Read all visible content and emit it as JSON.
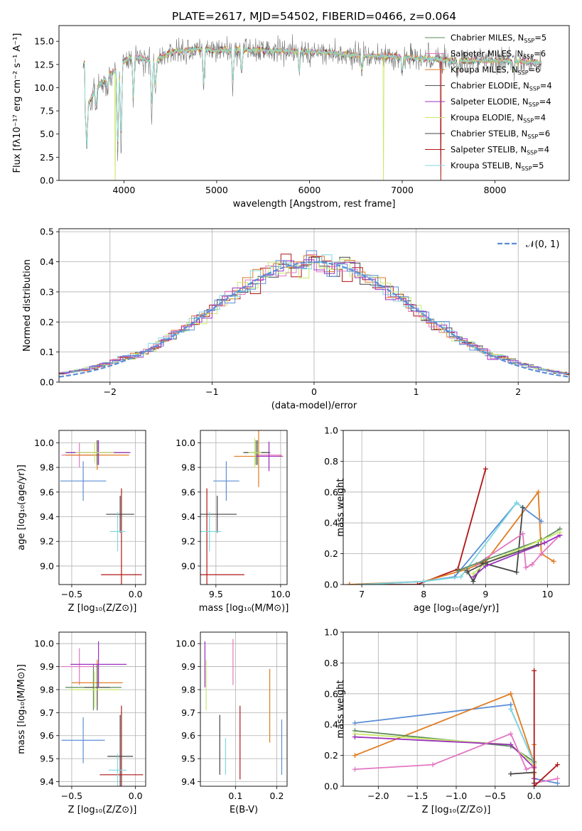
{
  "colors": {
    "Chabrier MILES": "#5a8a5a",
    "Salpeter MILES": "#e377c2",
    "Kroupa MILES": "#e07b20",
    "Chabrier ELODIE": "#555555",
    "Salpeter ELODIE": "#9b30c0",
    "Kroupa ELODIE": "#c8e86a",
    "Chabrier STELIB": "#444444",
    "Salpeter STELIB": "#b01515",
    "Kroupa STELIB": "#80d8e0",
    "Gaussian": "#5b8ed6",
    "grid": "#b0b0b0"
  },
  "chart_data": [
    {
      "id": "spectrum",
      "type": "line",
      "title": "PLATE=2617, MJD=54502, FIBERID=0466, z=0.064",
      "xlabel": "wavelength [Angstrom, rest frame]",
      "ylabel": "Flux [fλ10⁻¹⁷ erg cm⁻² s⁻¹ A⁻¹]",
      "xlim": [
        3300,
        8800
      ],
      "ylim": [
        0,
        16.7
      ],
      "xticks": [
        "4000",
        "5000",
        "6000",
        "7000",
        "8000"
      ],
      "yticks": [
        "0.0",
        "2.5",
        "5.0",
        "7.5",
        "10.0",
        "12.5",
        "15.0"
      ],
      "legend": "top-right",
      "series_labels": [
        {
          "name": "Chabrier MILES",
          "nssp": "5"
        },
        {
          "name": "Salpeter MILES",
          "nssp": "6"
        },
        {
          "name": "Kroupa MILES",
          "nssp": "6"
        },
        {
          "name": "Chabrier ELODIE",
          "nssp": "4"
        },
        {
          "name": "Salpeter ELODIE",
          "nssp": "4"
        },
        {
          "name": "Kroupa ELODIE",
          "nssp": "4"
        },
        {
          "name": "Chabrier STELIB",
          "nssp": "6"
        },
        {
          "name": "Salpeter STELIB",
          "nssp": "4"
        },
        {
          "name": "Kroupa STELIB",
          "nssp": "5"
        }
      ],
      "continuum": [
        [
          3580,
          7.5
        ],
        [
          3700,
          10.0
        ],
        [
          3900,
          11.8
        ],
        [
          4000,
          12.8
        ],
        [
          4100,
          13.4
        ],
        [
          4300,
          12.8
        ],
        [
          4500,
          13.8
        ],
        [
          4800,
          14.2
        ],
        [
          5000,
          14.0
        ],
        [
          5300,
          14.1
        ],
        [
          5600,
          14.0
        ],
        [
          5900,
          13.9
        ],
        [
          6200,
          13.8
        ],
        [
          6500,
          13.5
        ],
        [
          6800,
          13.4
        ],
        [
          7000,
          13.3
        ],
        [
          7300,
          13.1
        ],
        [
          7600,
          12.9
        ],
        [
          8000,
          12.9
        ],
        [
          8500,
          12.7
        ]
      ],
      "dips": [
        [
          3600,
          3
        ],
        [
          3700,
          7.5
        ],
        [
          3820,
          9.5
        ],
        [
          3934,
          1.5
        ],
        [
          3969,
          2.5
        ],
        [
          4102,
          7.8
        ],
        [
          4300,
          6.8
        ],
        [
          4340,
          9.5
        ],
        [
          4861,
          9.6
        ],
        [
          5175,
          9.8
        ],
        [
          5270,
          11
        ],
        [
          5890,
          11.2
        ],
        [
          6563,
          11.6
        ],
        [
          7000,
          11.5
        ],
        [
          7600,
          11.5
        ],
        [
          8200,
          11.6
        ],
        [
          8540,
          10.5
        ]
      ],
      "spikes": [
        [
          3905,
          0,
          "Kroupa ELODIE"
        ],
        [
          6800,
          0,
          "Kroupa ELODIE"
        ],
        [
          7415,
          0,
          "Salpeter STELIB"
        ]
      ]
    },
    {
      "id": "residuals",
      "type": "step",
      "xlabel": "(data-model)/error",
      "ylabel": "Normed distribution",
      "xlim": [
        -2.5,
        2.5
      ],
      "ylim": [
        0,
        0.51
      ],
      "xticks": [
        "−2",
        "−1",
        "0",
        "1",
        "2"
      ],
      "yticks": [
        "0.0",
        "0.1",
        "0.2",
        "0.3",
        "0.4",
        "0.5"
      ],
      "legend_label": "𝒩(0, 1)",
      "legend": "top-right",
      "gaussian": {
        "mu": 0,
        "sigma": 1
      }
    },
    {
      "id": "age-vs-Z",
      "type": "errorbar",
      "xlabel": "Z [log₁₀(Z/Z⊙)]",
      "ylabel": "age  [log₁₀(age/yr)]",
      "xlim": [
        -0.6,
        0.08
      ],
      "ylim": [
        8.85,
        10.1
      ],
      "xticks": [
        [
          "-0.5",
          "−0.5"
        ],
        [
          "0",
          "0.0"
        ]
      ],
      "yticks": [
        [
          "9.0",
          "9.0"
        ],
        [
          "9.2",
          "9.2"
        ],
        [
          "9.4",
          "9.4"
        ],
        [
          "9.6",
          "9.6"
        ],
        [
          "9.8",
          "9.8"
        ],
        [
          "10.0",
          "10.0"
        ]
      ],
      "points": [
        {
          "s": "Chabrier MILES",
          "x": -0.3,
          "xe": 0.25,
          "y": 9.92,
          "ye": 0.1
        },
        {
          "s": "Salpeter MILES",
          "x": -0.44,
          "xe": 0.14,
          "y": 9.9,
          "ye": 0.1
        },
        {
          "s": "Kroupa MILES",
          "x": -0.3,
          "xe": 0.25,
          "y": 9.9,
          "ye": 0.12
        },
        {
          "s": "Chabrier ELODIE",
          "x": -0.3,
          "xe": 0.12,
          "y": 9.92,
          "ye": 0.1
        },
        {
          "s": "Salpeter ELODIE",
          "x": -0.29,
          "xe": 0.25,
          "y": 9.92,
          "ye": 0.1
        },
        {
          "s": "Kroupa ELODIE",
          "x": -0.32,
          "xe": 0.15,
          "y": 9.92,
          "ye": 0.08
        },
        {
          "s": "Chabrier STELIB",
          "x": -0.12,
          "xe": 0.11,
          "y": 9.42,
          "ye": 0.15
        },
        {
          "s": "Salpeter STELIB",
          "x": -0.11,
          "xe": 0.16,
          "y": 8.93,
          "ye": 0.7
        },
        {
          "s": "Kroupa STELIB",
          "x": -0.14,
          "xe": 0.06,
          "y": 9.28,
          "ye": 0.16
        },
        {
          "s": "Gaussian",
          "x": -0.41,
          "xe": 0.18,
          "y": 9.69,
          "ye": 0.16
        }
      ]
    },
    {
      "id": "age-vs-mass",
      "type": "errorbar",
      "xlabel": "mass [log₁₀(M/M⊙)]",
      "xlim": [
        9.38,
        10.05
      ],
      "ylim": [
        8.85,
        10.1
      ],
      "xticks": [
        [
          "9.5",
          "9.5"
        ],
        [
          "10.0",
          "10.0"
        ]
      ],
      "yticks": [
        [
          "9.0",
          "9.0"
        ],
        [
          "9.2",
          "9.2"
        ],
        [
          "9.4",
          "9.4"
        ],
        [
          "9.6",
          "9.6"
        ],
        [
          "9.8",
          "9.8"
        ],
        [
          "10.0",
          "10.0"
        ]
      ],
      "points": [
        {
          "s": "Chabrier MILES",
          "x": 9.81,
          "xe": 0.1,
          "y": 9.92,
          "ye": 0.1
        },
        {
          "s": "Salpeter MILES",
          "x": 9.91,
          "xe": 0.1,
          "y": 9.9,
          "ye": 0.1
        },
        {
          "s": "Kroupa MILES",
          "x": 9.83,
          "xe": 0.19,
          "y": 9.89,
          "ye": 0.25
        },
        {
          "s": "Chabrier ELODIE",
          "x": 9.82,
          "xe": 0.1,
          "y": 9.92,
          "ye": 0.1
        },
        {
          "s": "Salpeter ELODIE",
          "x": 9.91,
          "xe": 0.1,
          "y": 9.89,
          "ye": 0.12
        },
        {
          "s": "Kroupa ELODIE",
          "x": 9.8,
          "xe": 0.05,
          "y": 9.92,
          "ye": 0.12
        },
        {
          "s": "Chabrier STELIB",
          "x": 9.51,
          "xe": 0.15,
          "y": 9.42,
          "ye": 0.15
        },
        {
          "s": "Salpeter STELIB",
          "x": 9.43,
          "xe": 0.29,
          "y": 8.93,
          "ye": 0.7
        },
        {
          "s": "Kroupa STELIB",
          "x": 9.45,
          "xe": 0.09,
          "y": 9.28,
          "ye": 0.16
        },
        {
          "s": "Gaussian",
          "x": 9.58,
          "xe": 0.1,
          "y": 9.69,
          "ye": 0.16
        }
      ]
    },
    {
      "id": "weight-vs-age",
      "type": "line",
      "xlabel": "age  [log₁₀(age/yr)]",
      "ylabel": "mass weight",
      "xlim": [
        6.7,
        10.35
      ],
      "ylim": [
        0,
        1
      ],
      "xticks": [
        [
          "7",
          "7"
        ],
        [
          "8",
          "8"
        ],
        [
          "9",
          "9"
        ],
        [
          "10",
          "10"
        ]
      ],
      "yticks": [
        [
          "0.0",
          "0.0"
        ],
        [
          "0.2",
          "0.2"
        ],
        [
          "0.4",
          "0.4"
        ],
        [
          "0.6",
          "0.6"
        ],
        [
          "0.8",
          "0.8"
        ],
        [
          "1.0",
          "1.0"
        ]
      ],
      "series": [
        {
          "s": "Salpeter STELIB",
          "x": [
            6.8,
            7.9,
            8.55,
            9.0
          ],
          "y": [
            0.0,
            0.0,
            0.1,
            0.75
          ]
        },
        {
          "s": "Kroupa MILES",
          "x": [
            6.8,
            8.0,
            8.7,
            9.0,
            9.85,
            9.9,
            10.1
          ],
          "y": [
            0.0,
            0.02,
            0.1,
            0.15,
            0.6,
            0.2,
            0.15
          ]
        },
        {
          "s": "Gaussian",
          "x": [
            7.0,
            8.0,
            8.5,
            9.5,
            9.9
          ],
          "y": [
            0.0,
            0.02,
            0.05,
            0.53,
            0.41
          ]
        },
        {
          "s": "Kroupa STELIB",
          "x": [
            7.0,
            8.0,
            8.6,
            9.5,
            9.6
          ],
          "y": [
            0.0,
            0.02,
            0.05,
            0.53,
            0.5
          ]
        },
        {
          "s": "Chabrier STELIB",
          "x": [
            8.7,
            8.8,
            8.95,
            9.5,
            9.6
          ],
          "y": [
            0.09,
            0.02,
            0.14,
            0.08,
            0.5
          ]
        },
        {
          "s": "Salpeter MILES",
          "x": [
            8.85,
            9.6,
            9.65,
            9.75,
            9.9,
            10.2
          ],
          "y": [
            0.13,
            0.33,
            0.11,
            0.13,
            0.2,
            0.32
          ]
        },
        {
          "s": "Chabrier MILES",
          "x": [
            8.55,
            9.0,
            9.9,
            10.2
          ],
          "y": [
            0.09,
            0.16,
            0.29,
            0.36
          ]
        },
        {
          "s": "Salpeter ELODIE",
          "x": [
            8.8,
            9.0,
            9.95,
            10.2
          ],
          "y": [
            0.05,
            0.12,
            0.27,
            0.32
          ]
        },
        {
          "s": "Kroupa ELODIE",
          "x": [
            8.8,
            9.0,
            9.85,
            10.2
          ],
          "y": [
            0.07,
            0.14,
            0.28,
            0.34
          ]
        },
        {
          "s": "Chabrier ELODIE",
          "x": [
            8.7,
            9.0,
            9.85
          ],
          "y": [
            0.08,
            0.14,
            0.26
          ]
        }
      ]
    },
    {
      "id": "mass-vs-Z",
      "type": "errorbar",
      "xlabel": "Z [log₁₀(Z/Z⊙)]",
      "ylabel": "mass [log₁₀(M/M⊙)]",
      "xlim": [
        -0.6,
        0.08
      ],
      "ylim": [
        9.38,
        10.05
      ],
      "xticks": [
        [
          "-0.5",
          "−0.5"
        ],
        [
          "0",
          "0.0"
        ]
      ],
      "yticks": [
        [
          "9.4",
          "9.4"
        ],
        [
          "9.5",
          "9.5"
        ],
        [
          "9.6",
          "9.6"
        ],
        [
          "9.7",
          "9.7"
        ],
        [
          "9.8",
          "9.8"
        ],
        [
          "9.9",
          "9.9"
        ],
        [
          "10.0",
          "10.0"
        ]
      ],
      "points": [
        {
          "s": "Chabrier MILES",
          "x": -0.33,
          "xe": 0.22,
          "y": 9.81,
          "ye": 0.1
        },
        {
          "s": "Salpeter MILES",
          "x": -0.44,
          "xe": 0.14,
          "y": 9.9,
          "ye": 0.08
        },
        {
          "s": "Kroupa MILES",
          "x": -0.3,
          "xe": 0.2,
          "y": 9.83,
          "ye": 0.1
        },
        {
          "s": "Chabrier ELODIE",
          "x": -0.3,
          "xe": 0.1,
          "y": 9.81,
          "ye": 0.1
        },
        {
          "s": "Salpeter ELODIE",
          "x": -0.29,
          "xe": 0.22,
          "y": 9.91,
          "ye": 0.1
        },
        {
          "s": "Kroupa ELODIE",
          "x": -0.32,
          "xe": 0.2,
          "y": 9.8,
          "ye": 0.08
        },
        {
          "s": "Chabrier STELIB",
          "x": -0.12,
          "xe": 0.1,
          "y": 9.51,
          "ye": 0.18
        },
        {
          "s": "Salpeter STELIB",
          "x": -0.11,
          "xe": 0.17,
          "y": 9.43,
          "ye": 0.3
        },
        {
          "s": "Kroupa STELIB",
          "x": -0.14,
          "xe": 0.07,
          "y": 9.45,
          "ye": 0.07
        },
        {
          "s": "Gaussian",
          "x": -0.41,
          "xe": 0.17,
          "y": 9.58,
          "ye": 0.1
        }
      ]
    },
    {
      "id": "mass-vs-EBV",
      "type": "errorbar",
      "xlabel": "E(B-V)",
      "xlim": [
        0.015,
        0.225
      ],
      "ylim": [
        9.38,
        10.05
      ],
      "xticks": [
        [
          "0.1",
          "0.1"
        ],
        [
          "0.2",
          "0.2"
        ]
      ],
      "yticks": [
        [
          "9.4",
          "9.4"
        ],
        [
          "9.5",
          "9.5"
        ],
        [
          "9.6",
          "9.6"
        ],
        [
          "9.7",
          "9.7"
        ],
        [
          "9.8",
          "9.8"
        ],
        [
          "9.9",
          "9.9"
        ],
        [
          "10.0",
          "10.0"
        ]
      ],
      "points": [
        {
          "s": "Salpeter ELODIE",
          "x": 0.026,
          "xe": 0,
          "y": 9.91,
          "ye": 0.1
        },
        {
          "s": "Kroupa ELODIE",
          "x": 0.029,
          "xe": 0,
          "y": 9.82,
          "ye": 0.11
        },
        {
          "s": "Chabrier STELIB",
          "x": 0.062,
          "xe": 0,
          "y": 9.56,
          "ye": 0.13
        },
        {
          "s": "Kroupa STELIB",
          "x": 0.076,
          "xe": 0,
          "y": 9.51,
          "ye": 0.08
        },
        {
          "s": "Salpeter MILES",
          "x": 0.094,
          "xe": 0,
          "y": 9.92,
          "ye": 0.1
        },
        {
          "s": "Salpeter STELIB",
          "x": 0.111,
          "xe": 0,
          "y": 9.57,
          "ye": 0.16
        },
        {
          "s": "Kroupa MILES",
          "x": 0.183,
          "xe": 0,
          "y": 9.73,
          "ye": 0.16
        },
        {
          "s": "Gaussian",
          "x": 0.212,
          "xe": 0,
          "y": 9.55,
          "ye": 0.12
        }
      ]
    },
    {
      "id": "weight-vs-Z",
      "type": "line",
      "xlabel": "Z [log₁₀(Z/Z⊙)]",
      "ylabel": "mass weight",
      "xlim": [
        -2.45,
        0.45
      ],
      "ylim": [
        0,
        1
      ],
      "xticks": [
        [
          "-2",
          "−2.0"
        ],
        [
          "-1.5",
          "−1.5"
        ],
        [
          "-1",
          "−1.0"
        ],
        [
          "-0.5",
          "−0.5"
        ],
        [
          "0",
          "0.0"
        ]
      ],
      "yticks": [
        [
          "0.0",
          "0.0"
        ],
        [
          "0.2",
          "0.2"
        ],
        [
          "0.4",
          "0.4"
        ],
        [
          "0.6",
          "0.6"
        ],
        [
          "0.8",
          "0.8"
        ],
        [
          "1.0",
          "1.0"
        ]
      ],
      "series": [
        {
          "s": "Gaussian",
          "x": [
            -2.3,
            -0.3,
            -0.3,
            0.0,
            0.0,
            0.3
          ],
          "y": [
            0.41,
            0.53,
            0.5,
            0.15,
            0.05,
            0.02
          ]
        },
        {
          "s": "Kroupa MILES",
          "x": [
            -2.3,
            -0.3,
            0.0,
            0.0
          ],
          "y": [
            0.2,
            0.6,
            0.15,
            0.27
          ]
        },
        {
          "s": "Chabrier MILES",
          "x": [
            -2.3,
            -0.3,
            0.0,
            0.0
          ],
          "y": [
            0.36,
            0.26,
            0.16,
            0.05
          ]
        },
        {
          "s": "Kroupa ELODIE",
          "x": [
            -2.3,
            -0.3,
            0.0,
            0.0
          ],
          "y": [
            0.34,
            0.27,
            0.14,
            0.08
          ]
        },
        {
          "s": "Salpeter ELODIE",
          "x": [
            -2.3,
            -0.3,
            0.0,
            0.0
          ],
          "y": [
            0.32,
            0.27,
            0.12,
            0.05
          ]
        },
        {
          "s": "Salpeter MILES",
          "x": [
            -2.3,
            -1.3,
            -0.3,
            -0.1,
            0.0,
            0.0,
            0.3
          ],
          "y": [
            0.11,
            0.14,
            0.34,
            0.11,
            0.13,
            0.02,
            0.05
          ]
        },
        {
          "s": "Kroupa STELIB",
          "x": [
            -0.3,
            0.0,
            0.0
          ],
          "y": [
            0.5,
            0.15,
            0.0
          ]
        },
        {
          "s": "Chabrier STELIB",
          "x": [
            -0.3,
            0.0,
            0.0
          ],
          "y": [
            0.08,
            0.09,
            0.02
          ]
        },
        {
          "s": "Salpeter STELIB",
          "x": [
            0.0,
            0.0,
            0.0,
            0.3
          ],
          "y": [
            0.75,
            0.0,
            0.0,
            0.14
          ]
        }
      ]
    }
  ]
}
